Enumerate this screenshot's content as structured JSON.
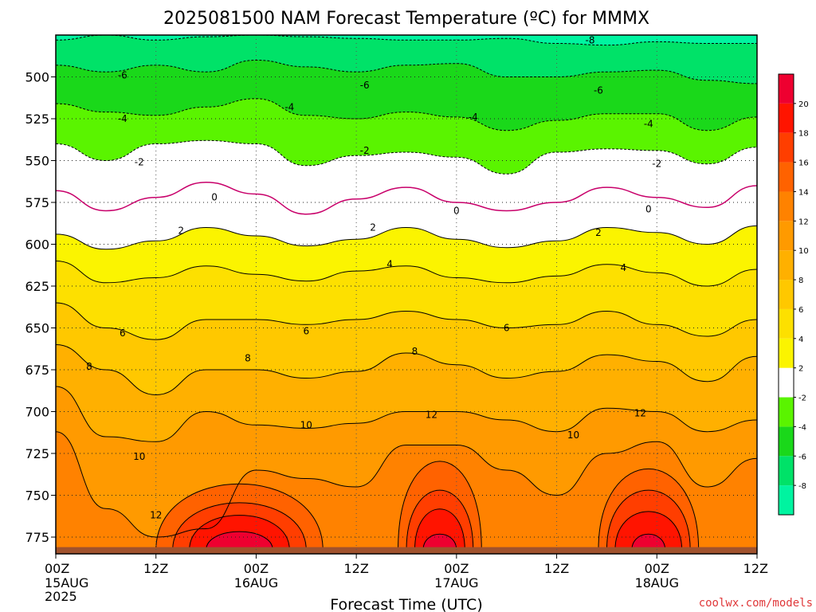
{
  "chart_data": {
    "type": "heatmap",
    "title": "2025081500 NAM Forecast Temperature (ºC) for MMMX",
    "xlabel": "Forecast Time (UTC)",
    "ylabel": "",
    "credit": "coolwx.com/models",
    "x_ticks": [
      {
        "hour": 0,
        "label": "00Z",
        "sub": "15AUG",
        "sub2": "2025"
      },
      {
        "hour": 12,
        "label": "12Z",
        "sub": "",
        "sub2": ""
      },
      {
        "hour": 24,
        "label": "00Z",
        "sub": "16AUG",
        "sub2": ""
      },
      {
        "hour": 36,
        "label": "12Z",
        "sub": "",
        "sub2": ""
      },
      {
        "hour": 48,
        "label": "00Z",
        "sub": "17AUG",
        "sub2": ""
      },
      {
        "hour": 60,
        "label": "12Z",
        "sub": "",
        "sub2": ""
      },
      {
        "hour": 72,
        "label": "00Z",
        "sub": "18AUG",
        "sub2": ""
      },
      {
        "hour": 84,
        "label": "12Z",
        "sub": "",
        "sub2": ""
      }
    ],
    "xlim": [
      0,
      84
    ],
    "y_ticks": [
      500,
      525,
      550,
      575,
      600,
      625,
      650,
      675,
      700,
      725,
      750,
      775
    ],
    "ylim": [
      475,
      785
    ],
    "y_axis": "pressure (hPa), increasing downward",
    "grid": true,
    "colorbar": {
      "levels": [
        -10,
        -8,
        -6,
        -4,
        -2,
        2,
        4,
        6,
        8,
        10,
        12,
        14,
        16,
        18,
        20,
        22
      ],
      "tick_labels": [
        "-8",
        "-6",
        "-4",
        "-2",
        "2",
        "4",
        "6",
        "8",
        "10",
        "12",
        "14",
        "16",
        "18",
        "20"
      ],
      "colors": [
        "#00f4a0",
        "#00e268",
        "#1ad81a",
        "#5af400",
        "#ffffff",
        "#fbf400",
        "#fde000",
        "#ffc800",
        "#ffb000",
        "#ff9a00",
        "#ff8200",
        "#ff6200",
        "#ff3e00",
        "#ff1400",
        "#ee0030"
      ]
    },
    "contour_levels": [
      -8,
      -6,
      -4,
      -2,
      0,
      2,
      4,
      6,
      8,
      10,
      12
    ],
    "contours": [
      {
        "level": -8,
        "x": [
          0,
          6,
          12,
          18,
          24,
          30,
          36,
          42,
          48,
          54,
          60,
          66,
          72,
          78,
          84
        ],
        "p": [
          478,
          475,
          478,
          476,
          475,
          476,
          477,
          478,
          478,
          477,
          480,
          481,
          479,
          480,
          480
        ]
      },
      {
        "level": -6,
        "x": [
          0,
          6,
          12,
          18,
          24,
          30,
          36,
          42,
          48,
          54,
          60,
          66,
          72,
          78,
          84
        ],
        "p": [
          493,
          497,
          493,
          497,
          490,
          494,
          497,
          493,
          492,
          500,
          500,
          497,
          496,
          502,
          504
        ]
      },
      {
        "level": -4,
        "x": [
          0,
          6,
          12,
          18,
          24,
          30,
          36,
          42,
          48,
          54,
          60,
          66,
          72,
          78,
          84
        ],
        "p": [
          516,
          521,
          523,
          518,
          513,
          523,
          525,
          521,
          524,
          532,
          526,
          522,
          522,
          532,
          524
        ]
      },
      {
        "level": -2,
        "x": [
          0,
          6,
          12,
          18,
          24,
          30,
          36,
          42,
          48,
          54,
          60,
          66,
          72,
          78,
          84
        ],
        "p": [
          540,
          550,
          540,
          538,
          540,
          553,
          547,
          545,
          548,
          558,
          545,
          543,
          544,
          552,
          542
        ]
      },
      {
        "level": 0,
        "x": [
          0,
          6,
          12,
          18,
          24,
          30,
          36,
          42,
          48,
          54,
          60,
          66,
          72,
          78,
          84
        ],
        "p": [
          568,
          580,
          572,
          563,
          570,
          582,
          573,
          566,
          575,
          580,
          575,
          566,
          572,
          578,
          565
        ]
      },
      {
        "level": 2,
        "x": [
          0,
          6,
          12,
          18,
          24,
          30,
          36,
          42,
          48,
          54,
          60,
          66,
          72,
          78,
          84
        ],
        "p": [
          594,
          603,
          598,
          590,
          595,
          601,
          597,
          590,
          597,
          602,
          598,
          590,
          593,
          600,
          589
        ]
      },
      {
        "level": 4,
        "x": [
          0,
          6,
          12,
          18,
          24,
          30,
          36,
          42,
          48,
          54,
          60,
          66,
          72,
          78,
          84
        ],
        "p": [
          610,
          623,
          620,
          613,
          618,
          622,
          616,
          613,
          620,
          623,
          619,
          612,
          617,
          625,
          615
        ]
      },
      {
        "level": 6,
        "x": [
          0,
          6,
          12,
          18,
          24,
          30,
          36,
          42,
          48,
          54,
          60,
          66,
          72,
          78,
          84
        ],
        "p": [
          635,
          650,
          657,
          645,
          645,
          648,
          645,
          640,
          645,
          650,
          648,
          640,
          648,
          655,
          645
        ]
      },
      {
        "level": 8,
        "x": [
          0,
          6,
          12,
          18,
          24,
          30,
          36,
          42,
          48,
          54,
          60,
          66,
          72,
          78,
          84
        ],
        "p": [
          660,
          675,
          690,
          675,
          675,
          680,
          676,
          665,
          672,
          680,
          676,
          666,
          670,
          682,
          667
        ]
      },
      {
        "level": 10,
        "x": [
          0,
          6,
          12,
          18,
          24,
          30,
          36,
          42,
          48,
          54,
          60,
          66,
          72,
          78,
          84
        ],
        "p": [
          685,
          715,
          718,
          700,
          708,
          710,
          707,
          700,
          700,
          705,
          712,
          698,
          700,
          712,
          705
        ]
      },
      {
        "level": 12,
        "x": [
          0,
          6,
          12,
          18,
          24,
          30,
          36,
          42,
          48,
          54,
          60,
          66,
          72,
          78,
          84
        ],
        "p": [
          712,
          758,
          775,
          770,
          735,
          740,
          745,
          720,
          720,
          735,
          750,
          725,
          718,
          745,
          728
        ]
      }
    ],
    "contour_labels": [
      {
        "level": -8,
        "x": 64,
        "p": 478,
        "text": "-8"
      },
      {
        "level": -6,
        "x": 8,
        "p": 499,
        "text": "-6"
      },
      {
        "level": -6,
        "x": 37,
        "p": 505,
        "text": "-6"
      },
      {
        "level": -6,
        "x": 65,
        "p": 508,
        "text": "-6"
      },
      {
        "level": -4,
        "x": 8,
        "p": 525,
        "text": "-4"
      },
      {
        "level": -4,
        "x": 28,
        "p": 518,
        "text": "-4"
      },
      {
        "level": -4,
        "x": 50,
        "p": 524,
        "text": "-4"
      },
      {
        "level": -4,
        "x": 71,
        "p": 528,
        "text": "-4"
      },
      {
        "level": -2,
        "x": 10,
        "p": 551,
        "text": "-2"
      },
      {
        "level": -2,
        "x": 37,
        "p": 544,
        "text": "-2"
      },
      {
        "level": -2,
        "x": 72,
        "p": 552,
        "text": "-2"
      },
      {
        "level": 0,
        "x": 19,
        "p": 572,
        "text": "0"
      },
      {
        "level": 0,
        "x": 48,
        "p": 580,
        "text": "0"
      },
      {
        "level": 0,
        "x": 71,
        "p": 579,
        "text": "0"
      },
      {
        "level": 2,
        "x": 15,
        "p": 592,
        "text": "2"
      },
      {
        "level": 2,
        "x": 38,
        "p": 590,
        "text": "2"
      },
      {
        "level": 2,
        "x": 65,
        "p": 593,
        "text": "2"
      },
      {
        "level": 4,
        "x": 40,
        "p": 612,
        "text": "4"
      },
      {
        "level": 4,
        "x": 68,
        "p": 614,
        "text": "4"
      },
      {
        "level": 6,
        "x": 8,
        "p": 653,
        "text": "6"
      },
      {
        "level": 6,
        "x": 30,
        "p": 652,
        "text": "6"
      },
      {
        "level": 6,
        "x": 54,
        "p": 650,
        "text": "6"
      },
      {
        "level": 8,
        "x": 4,
        "p": 673,
        "text": "8"
      },
      {
        "level": 8,
        "x": 23,
        "p": 668,
        "text": "8"
      },
      {
        "level": 8,
        "x": 43,
        "p": 664,
        "text": "8"
      },
      {
        "level": 10,
        "x": 10,
        "p": 727,
        "text": "10"
      },
      {
        "level": 10,
        "x": 30,
        "p": 708,
        "text": "10"
      },
      {
        "level": 10,
        "x": 62,
        "p": 714,
        "text": "10"
      },
      {
        "level": 12,
        "x": 12,
        "p": 762,
        "text": "12"
      },
      {
        "level": 12,
        "x": 45,
        "p": 702,
        "text": "12"
      },
      {
        "level": 12,
        "x": 70,
        "p": 701,
        "text": "12"
      }
    ],
    "warm_cores": [
      {
        "center_hour": 22,
        "top_p": [
          730,
          745,
          755,
          768
        ],
        "half_width_h": [
          10,
          8,
          6,
          4
        ],
        "levels": [
          14,
          16,
          18,
          20
        ]
      },
      {
        "center_hour": 46,
        "top_p": [
          712,
          735,
          750,
          770
        ],
        "half_width_h": [
          5,
          4,
          3,
          2
        ],
        "levels": [
          14,
          16,
          18,
          20
        ]
      },
      {
        "center_hour": 71,
        "top_p": [
          718,
          735,
          752,
          770
        ],
        "half_width_h": [
          6,
          5,
          4,
          2
        ],
        "levels": [
          14,
          16,
          18,
          20
        ]
      }
    ],
    "ground_p": 781,
    "ground_color": "#a0522d"
  }
}
